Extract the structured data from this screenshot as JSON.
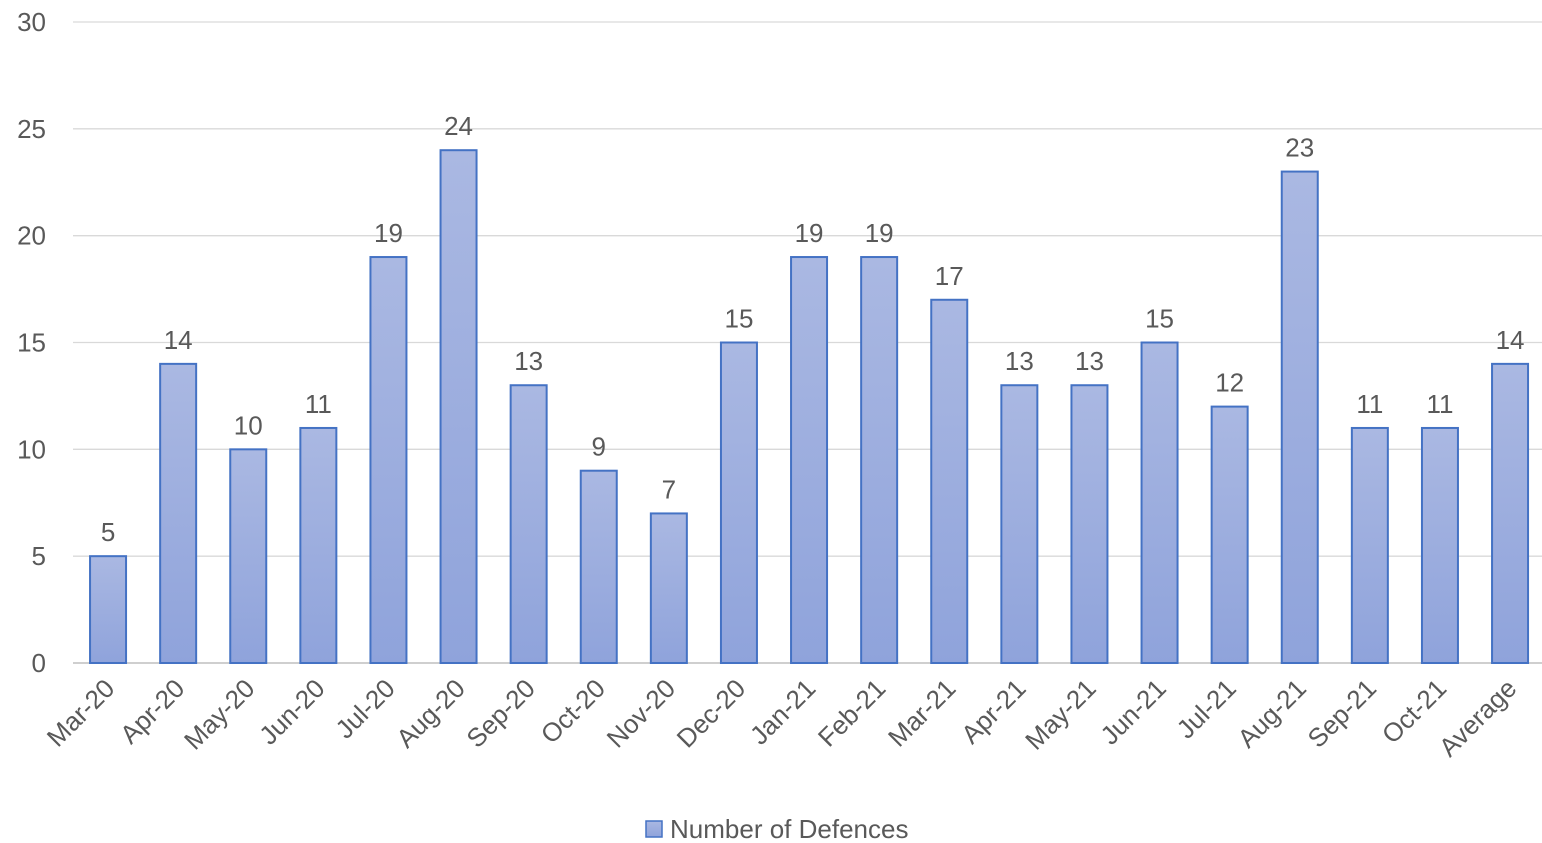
{
  "chart_data": {
    "type": "bar",
    "title": "",
    "xlabel": "",
    "ylabel": "",
    "categories": [
      "Mar-20",
      "Apr-20",
      "May-20",
      "Jun-20",
      "Jul-20",
      "Aug-20",
      "Sep-20",
      "Oct-20",
      "Nov-20",
      "Dec-20",
      "Jan-21",
      "Feb-21",
      "Mar-21",
      "Apr-21",
      "May-21",
      "Jun-21",
      "Jul-21",
      "Aug-21",
      "Sep-21",
      "Oct-21",
      "Average"
    ],
    "series": [
      {
        "name": "Number of Defences",
        "values": [
          5,
          14,
          10,
          11,
          19,
          24,
          13,
          9,
          7,
          15,
          19,
          19,
          17,
          13,
          13,
          15,
          12,
          23,
          11,
          11,
          14
        ]
      }
    ],
    "ylim": [
      0,
      30
    ],
    "yticks": [
      0,
      5,
      10,
      15,
      20,
      25,
      30
    ],
    "grid": true,
    "data_labels": true,
    "legend": "bottom",
    "colors": {
      "bar_fill_top": "#aab8e2",
      "bar_fill_bottom": "#8fa3db",
      "bar_stroke": "#4472c4",
      "grid": "#d9d9d9",
      "text": "#595959"
    }
  }
}
